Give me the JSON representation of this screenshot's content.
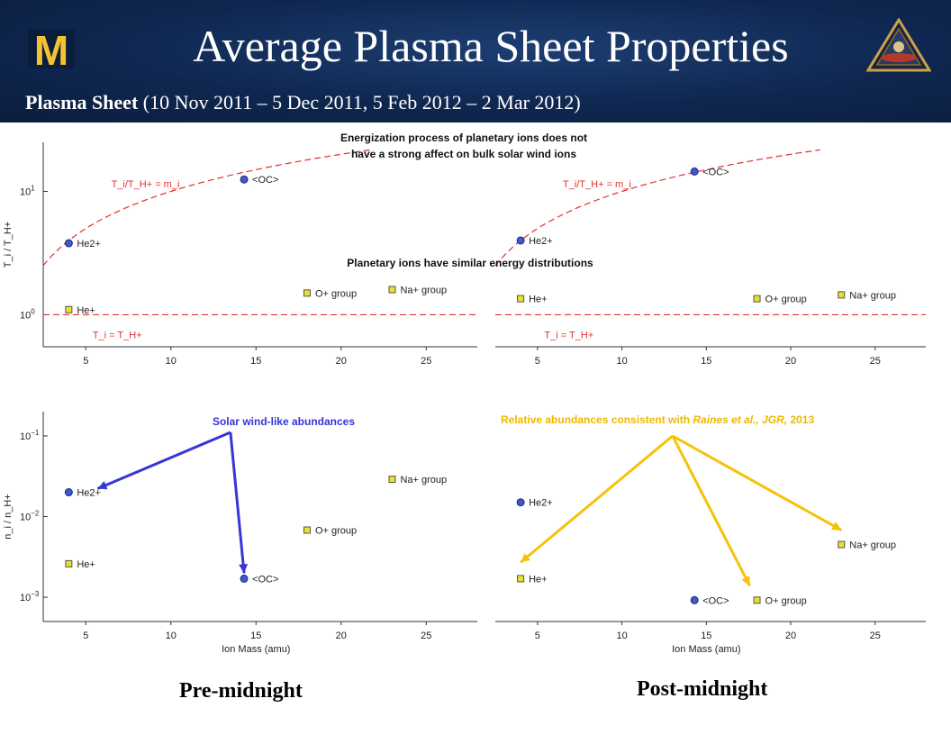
{
  "header": {
    "title": "Average Plasma Sheet Properties",
    "subtitle_bold": "Plasma Sheet",
    "subtitle_rest": " (10 Nov 2011 – 5 Dec 2011, 5 Feb 2012 – 2 Mar 2012)",
    "logo_text": "M",
    "logo_color": "#f2c230",
    "background": "#0f2750"
  },
  "annotations": {
    "energization_line1": "Energization process of planetary ions does not",
    "energization_line2": "have a strong affect on bulk solar wind ions",
    "planetary_similar": "Planetary ions have similar energy distributions",
    "solar_wind_like": "Solar wind-like abundances",
    "relative_prefix": "Relative abundances consistent with ",
    "relative_citation": "Raines et al., JGR,",
    "relative_year": " 2013",
    "blue_arrow_color": "#3535d8",
    "gold_arrow_color": "#f5c20a"
  },
  "captions": {
    "pre": "Pre-midnight",
    "post": "Post-midnight"
  },
  "chart_data": [
    {
      "type": "scatter",
      "panel": "pre-midnight temperature ratio",
      "ylabel": "T_i / T_H+",
      "y_scale": "log",
      "ylim": [
        0.55,
        25
      ],
      "xlim": [
        2.5,
        28
      ],
      "x_ticks": [
        5,
        10,
        15,
        20,
        25
      ],
      "y_ticks": [
        {
          "value": 1,
          "label": "10",
          "exp": "0"
        },
        {
          "value": 10,
          "label": "10",
          "exp": "1"
        }
      ],
      "reference_lines": [
        {
          "label": "T_i/T_H+ = m_i",
          "formula": "y = x"
        },
        {
          "label": "T_i = T_H+",
          "formula": "y = 1"
        }
      ],
      "points": [
        {
          "name": "He2+",
          "x": 4,
          "y": 3.8,
          "marker": "circle"
        },
        {
          "name": "He+",
          "x": 4,
          "y": 1.1,
          "marker": "square"
        },
        {
          "name": "<OC>",
          "x": 14.3,
          "y": 12.5,
          "marker": "circle"
        },
        {
          "name": "O+ group",
          "x": 18,
          "y": 1.5,
          "marker": "square"
        },
        {
          "name": "Na+ group",
          "x": 23,
          "y": 1.6,
          "marker": "square"
        }
      ]
    },
    {
      "type": "scatter",
      "panel": "post-midnight temperature ratio",
      "ylabel": "",
      "y_scale": "log",
      "ylim": [
        0.55,
        25
      ],
      "xlim": [
        2.5,
        28
      ],
      "x_ticks": [
        5,
        10,
        15,
        20,
        25
      ],
      "reference_lines": [
        {
          "label": "T_i/T_H+ = m_i",
          "formula": "y = x"
        },
        {
          "label": "T_i = T_H+",
          "formula": "y = 1"
        }
      ],
      "points": [
        {
          "name": "He2+",
          "x": 4,
          "y": 4.0,
          "marker": "circle"
        },
        {
          "name": "He+",
          "x": 4,
          "y": 1.35,
          "marker": "square"
        },
        {
          "name": "<OC>",
          "x": 14.3,
          "y": 14.5,
          "marker": "circle"
        },
        {
          "name": "O+ group",
          "x": 18,
          "y": 1.35,
          "marker": "square"
        },
        {
          "name": "Na+ group",
          "x": 23,
          "y": 1.45,
          "marker": "square"
        }
      ]
    },
    {
      "type": "scatter",
      "panel": "pre-midnight abundance",
      "xlabel": "Ion Mass (amu)",
      "ylabel": "n_i / n_H+",
      "y_scale": "log",
      "ylim": [
        0.0005,
        0.2
      ],
      "xlim": [
        2.5,
        28
      ],
      "x_ticks": [
        5,
        10,
        15,
        20,
        25
      ],
      "y_ticks": [
        {
          "value": 0.1,
          "label": "10",
          "exp": "−1"
        },
        {
          "value": 0.01,
          "label": "10",
          "exp": "−2"
        },
        {
          "value": 0.001,
          "label": "10",
          "exp": "−3"
        }
      ],
      "points": [
        {
          "name": "He2+",
          "x": 4,
          "y": 0.02,
          "marker": "circle"
        },
        {
          "name": "He+",
          "x": 4,
          "y": 0.0026,
          "marker": "square"
        },
        {
          "name": "<OC>",
          "x": 14.3,
          "y": 0.0017,
          "marker": "circle"
        },
        {
          "name": "O+ group",
          "x": 18,
          "y": 0.0068,
          "marker": "square"
        },
        {
          "name": "Na+ group",
          "x": 23,
          "y": 0.029,
          "marker": "square"
        }
      ]
    },
    {
      "type": "scatter",
      "panel": "post-midnight abundance",
      "xlabel": "Ion Mass (amu)",
      "ylabel": "",
      "y_scale": "log",
      "ylim": [
        0.0005,
        0.2
      ],
      "xlim": [
        2.5,
        28
      ],
      "x_ticks": [
        5,
        10,
        15,
        20,
        25
      ],
      "points": [
        {
          "name": "He2+",
          "x": 4,
          "y": 0.015,
          "marker": "circle"
        },
        {
          "name": "He+",
          "x": 4,
          "y": 0.0017,
          "marker": "square"
        },
        {
          "name": "<OC>",
          "x": 14.3,
          "y": 0.00092,
          "marker": "circle"
        },
        {
          "name": "O+ group",
          "x": 18,
          "y": 0.00092,
          "marker": "square"
        },
        {
          "name": "Na+ group",
          "x": 23,
          "y": 0.0045,
          "marker": "square"
        }
      ]
    }
  ]
}
